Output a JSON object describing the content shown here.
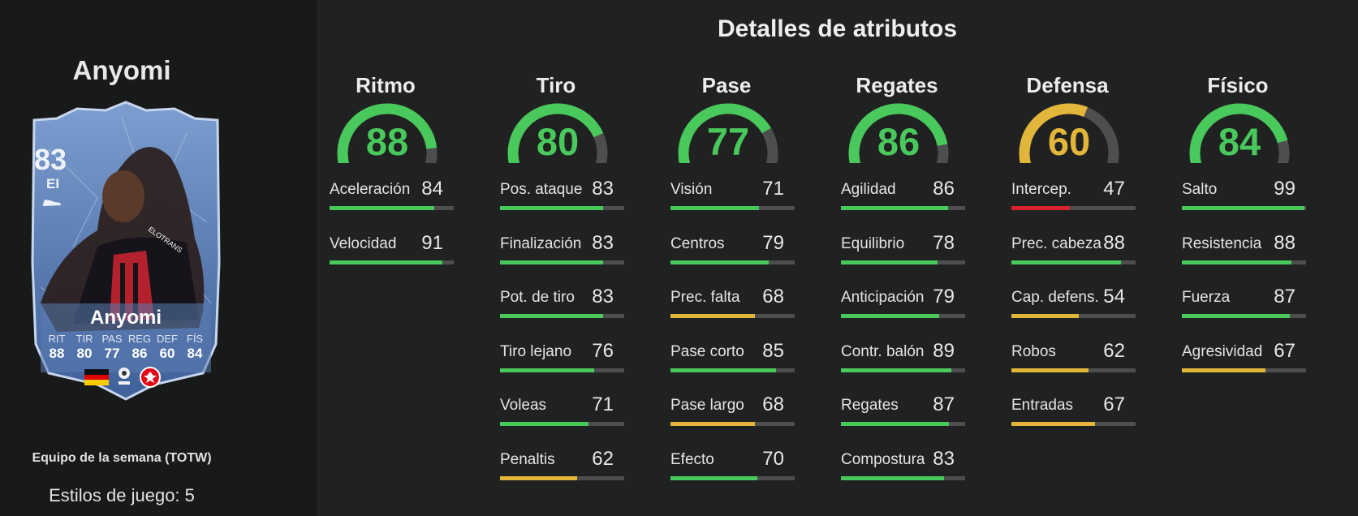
{
  "player": {
    "name": "Anyomi",
    "card": {
      "rating": "83",
      "position": "EI",
      "name": "Anyomi",
      "stats": [
        {
          "label": "RIT",
          "value": "88"
        },
        {
          "label": "TIR",
          "value": "80"
        },
        {
          "label": "PAS",
          "value": "77"
        },
        {
          "label": "REG",
          "value": "86"
        },
        {
          "label": "DEF",
          "value": "60"
        },
        {
          "label": "FÍS",
          "value": "84"
        }
      ]
    },
    "promo": "Equipo de la semana (TOTW)",
    "playstyles": "Estilos de juego: 5"
  },
  "colors": {
    "high": "#49c85c",
    "mid": "#e2b63a",
    "low": "#d8232f",
    "track": "#4d4e4e"
  },
  "section_title": "Detalles de atributos",
  "categories": [
    {
      "name": "Ritmo",
      "value": 88,
      "attributes": [
        {
          "label": "Aceleración",
          "value": 84
        },
        {
          "label": "Velocidad",
          "value": 91
        }
      ]
    },
    {
      "name": "Tiro",
      "value": 80,
      "attributes": [
        {
          "label": "Pos. ataque",
          "value": 83
        },
        {
          "label": "Finalización",
          "value": 83
        },
        {
          "label": "Pot. de tiro",
          "value": 83
        },
        {
          "label": "Tiro lejano",
          "value": 76
        },
        {
          "label": "Voleas",
          "value": 71
        },
        {
          "label": "Penaltis",
          "value": 62
        }
      ]
    },
    {
      "name": "Pase",
      "value": 77,
      "attributes": [
        {
          "label": "Visión",
          "value": 71
        },
        {
          "label": "Centros",
          "value": 79
        },
        {
          "label": "Prec. falta",
          "value": 68
        },
        {
          "label": "Pase corto",
          "value": 85
        },
        {
          "label": "Pase largo",
          "value": 68
        },
        {
          "label": "Efecto",
          "value": 70
        }
      ]
    },
    {
      "name": "Regates",
      "value": 86,
      "attributes": [
        {
          "label": "Agilidad",
          "value": 86
        },
        {
          "label": "Equilibrio",
          "value": 78
        },
        {
          "label": "Anticipación",
          "value": 79
        },
        {
          "label": "Contr. balón",
          "value": 89
        },
        {
          "label": "Regates",
          "value": 87
        },
        {
          "label": "Compostura",
          "value": 83
        }
      ]
    },
    {
      "name": "Defensa",
      "value": 60,
      "attributes": [
        {
          "label": "Intercep.",
          "value": 47
        },
        {
          "label": "Prec. cabeza",
          "value": 88
        },
        {
          "label": "Cap. defens.",
          "value": 54
        },
        {
          "label": "Robos",
          "value": 62
        },
        {
          "label": "Entradas",
          "value": 67
        }
      ]
    },
    {
      "name": "Físico",
      "value": 84,
      "attributes": [
        {
          "label": "Salto",
          "value": 99
        },
        {
          "label": "Resistencia",
          "value": 88
        },
        {
          "label": "Fuerza",
          "value": 87
        },
        {
          "label": "Agresividad",
          "value": 67
        }
      ]
    }
  ]
}
